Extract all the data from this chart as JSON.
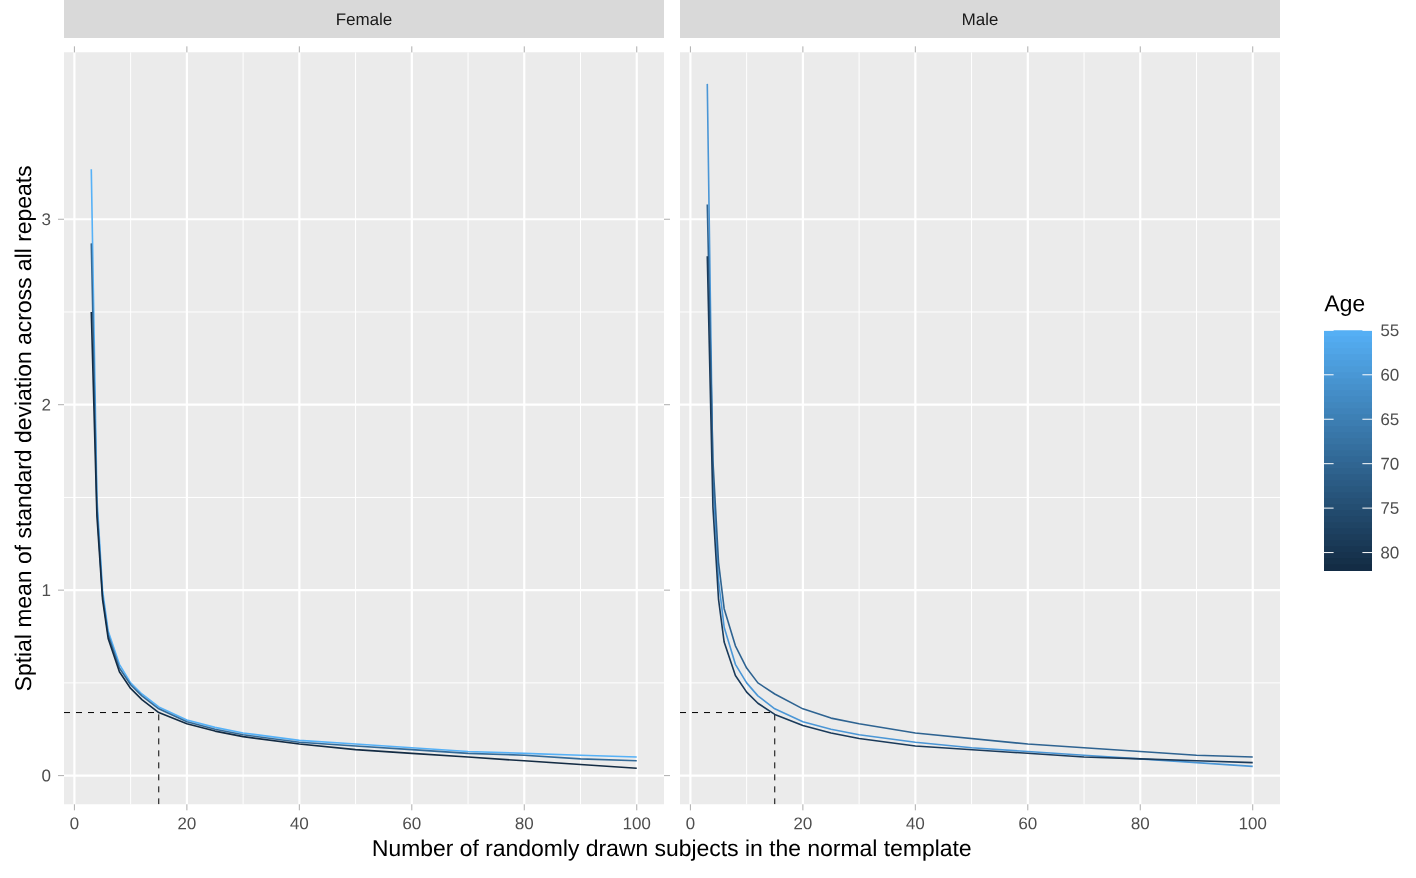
{
  "chart_data": [
    {
      "type": "line",
      "title": "Female",
      "xlabel": "Number of randomly drawn subjects in the normal template",
      "ylabel": "Sptial mean of standard deviation across all repeats",
      "x": [
        3,
        4,
        5,
        6,
        8,
        10,
        12,
        15,
        20,
        25,
        30,
        40,
        50,
        60,
        70,
        80,
        90,
        100
      ],
      "series": [
        {
          "color": "#56b1f7",
          "values": [
            3.27,
            1.5,
            1.0,
            0.78,
            0.6,
            0.5,
            0.44,
            0.37,
            0.3,
            0.26,
            0.23,
            0.19,
            0.17,
            0.15,
            0.13,
            0.12,
            0.11,
            0.1
          ]
        },
        {
          "color": "#336a98",
          "values": [
            2.87,
            1.45,
            0.97,
            0.76,
            0.58,
            0.49,
            0.43,
            0.36,
            0.29,
            0.25,
            0.22,
            0.18,
            0.16,
            0.14,
            0.12,
            0.11,
            0.09,
            0.08
          ]
        },
        {
          "color": "#132b43",
          "values": [
            2.5,
            1.4,
            0.95,
            0.74,
            0.56,
            0.47,
            0.41,
            0.34,
            0.28,
            0.24,
            0.21,
            0.17,
            0.14,
            0.12,
            0.1,
            0.08,
            0.06,
            0.04
          ]
        }
      ],
      "xlim": [
        -1.85,
        104.85
      ],
      "ylim": [
        -0.155,
        3.9
      ],
      "xticks": [
        0,
        20,
        40,
        60,
        80,
        100
      ],
      "yticks": [
        0,
        1,
        2,
        3
      ],
      "grid": true,
      "ref_lines": [
        {
          "axis": "y",
          "value": 0.34,
          "line_style": "dashed",
          "color": "#000000"
        },
        {
          "axis": "x",
          "value": 15,
          "line_style": "dashed",
          "color": "#000000"
        }
      ]
    },
    {
      "type": "line",
      "title": "Male",
      "x": [
        3,
        4,
        5,
        6,
        8,
        10,
        12,
        15,
        20,
        25,
        30,
        40,
        50,
        60,
        70,
        80,
        90,
        100
      ],
      "series": [
        {
          "color": "#4a96d6",
          "values": [
            3.73,
            1.6,
            1.05,
            0.8,
            0.6,
            0.5,
            0.43,
            0.36,
            0.29,
            0.25,
            0.22,
            0.18,
            0.15,
            0.13,
            0.11,
            0.09,
            0.07,
            0.05
          ]
        },
        {
          "color": "#2e6391",
          "values": [
            3.08,
            1.7,
            1.15,
            0.9,
            0.7,
            0.58,
            0.5,
            0.44,
            0.36,
            0.31,
            0.28,
            0.23,
            0.2,
            0.17,
            0.15,
            0.13,
            0.11,
            0.1
          ]
        },
        {
          "color": "#1a3a5a",
          "values": [
            2.8,
            1.45,
            0.95,
            0.72,
            0.54,
            0.45,
            0.39,
            0.33,
            0.27,
            0.23,
            0.2,
            0.16,
            0.14,
            0.12,
            0.1,
            0.09,
            0.08,
            0.07
          ]
        }
      ],
      "xlim": [
        -1.85,
        104.85
      ],
      "ylim": [
        -0.155,
        3.9
      ],
      "xticks": [
        0,
        20,
        40,
        60,
        80,
        100
      ],
      "yticks": [
        0,
        1,
        2,
        3
      ],
      "grid": true,
      "tick_labels": "x",
      "clabel": "Age",
      "clim": [
        55,
        82
      ],
      "cticks": [
        55,
        60,
        65,
        70,
        75,
        80
      ],
      "ref_lines": [
        {
          "axis": "y",
          "value": 0.34,
          "line_style": "dashed",
          "color": "#000000"
        },
        {
          "axis": "x",
          "value": 15,
          "line_style": "dashed",
          "color": "#000000"
        }
      ]
    }
  ]
}
